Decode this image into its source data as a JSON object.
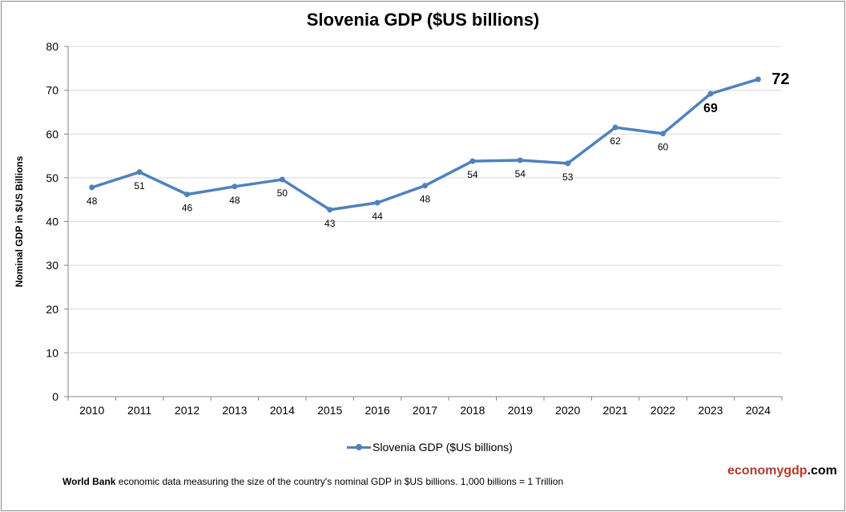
{
  "chart_data": {
    "type": "line",
    "title": "Slovenia GDP ($US billions)",
    "xlabel": "",
    "ylabel": "Nominal GDP in $US Billions",
    "categories": [
      "2010",
      "2011",
      "2012",
      "2013",
      "2014",
      "2015",
      "2016",
      "2017",
      "2018",
      "2019",
      "2020",
      "2021",
      "2022",
      "2023",
      "2024"
    ],
    "series": [
      {
        "name": "Slovenia GDP ($US billions)",
        "values": [
          47.8,
          51.3,
          46.2,
          48.0,
          49.6,
          42.7,
          44.3,
          48.2,
          53.8,
          54.0,
          53.3,
          61.5,
          60.1,
          69.2,
          72.5
        ],
        "labels": [
          "48",
          "51",
          "46",
          "48",
          "50",
          "43",
          "44",
          "48",
          "54",
          "54",
          "53",
          "62",
          "60",
          "69",
          "72"
        ],
        "color": "#4f81bd"
      }
    ],
    "ylim": [
      0,
      80
    ],
    "yticks": [
      "0",
      "10",
      "20",
      "30",
      "40",
      "50",
      "60",
      "70",
      "80"
    ],
    "grid": true,
    "legend": "bottom"
  },
  "footer": {
    "source_bold": "World Bank",
    "source_text": " economic data  measuring the size of the country's nominal GDP in $US billions. 1,000 billions = 1 Trillion",
    "brand_a": "economygdp",
    "brand_b": ".com",
    "brand_color": "#b03a2e"
  }
}
